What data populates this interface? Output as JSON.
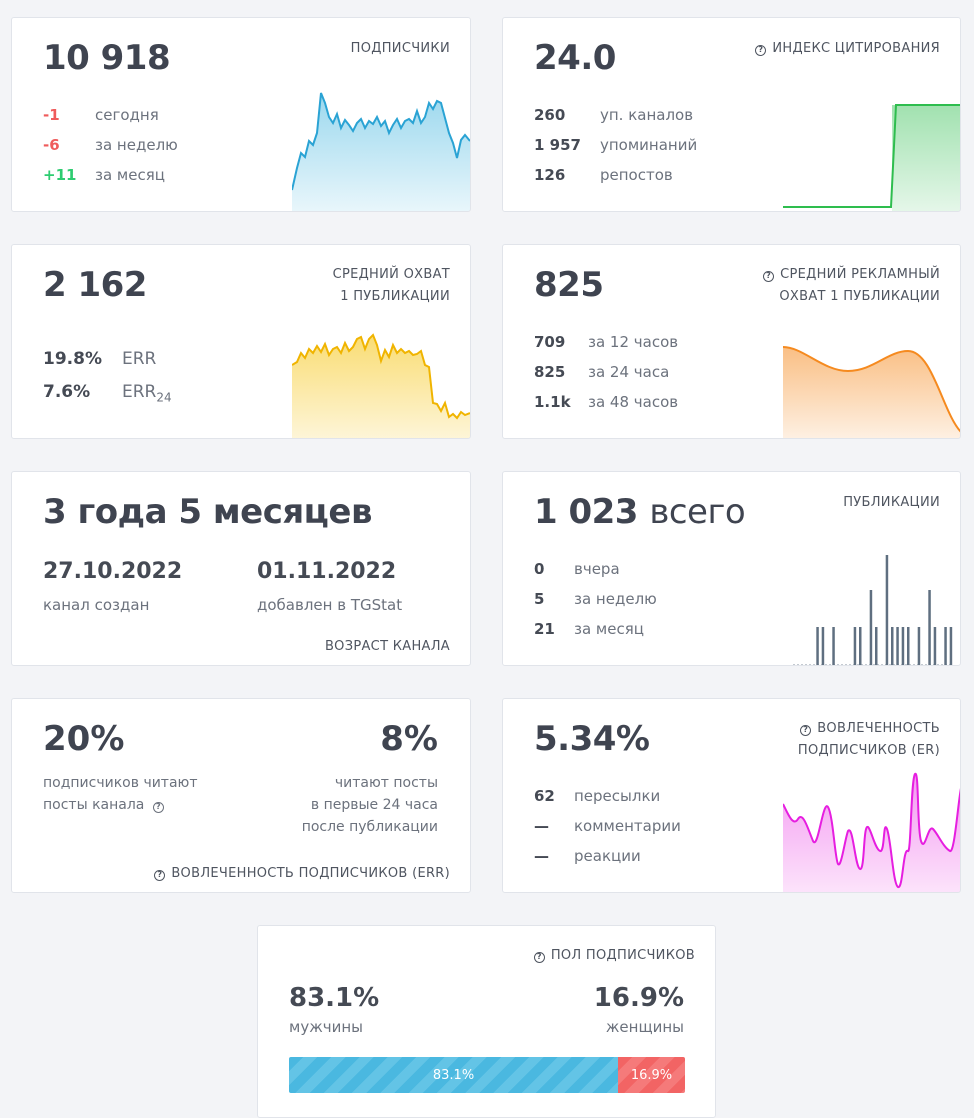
{
  "subscribers": {
    "value": "10 918",
    "caption": "ПОДПИСЧИКИ",
    "rows": [
      {
        "num": "-1",
        "label": "сегодня"
      },
      {
        "num": "-6",
        "label": "за неделю"
      },
      {
        "num": "+11",
        "label": "за месяц"
      }
    ],
    "chart_color": "#4ab8e0"
  },
  "citation": {
    "value": "24.0",
    "caption": "ИНДЕКС ЦИТИРОВАНИЯ",
    "rows": [
      {
        "num": "260",
        "label": "уп. каналов"
      },
      {
        "num": "1 957",
        "label": "упоминаний"
      },
      {
        "num": "126",
        "label": "репостов"
      }
    ],
    "chart_color": "#2ebd4e"
  },
  "reach": {
    "value": "2 162",
    "caption_line1": "СРЕДНИЙ ОХВАТ",
    "caption_line2": "1 ПУБЛИКАЦИИ",
    "rows": [
      {
        "num": "19.8%",
        "label": "ERR"
      },
      {
        "num": "7.6%",
        "label": "ERR",
        "sub": "24"
      }
    ],
    "chart_color": "#f5c000"
  },
  "ad_reach": {
    "value": "825",
    "caption_line1": "СРЕДНИЙ РЕКЛАМНЫЙ",
    "caption_line2": "ОХВАТ 1 ПУБЛИКАЦИИ",
    "rows": [
      {
        "num": "709",
        "label": "за 12 часов"
      },
      {
        "num": "825",
        "label": "за 24 часа"
      },
      {
        "num": "1.1k",
        "label": "за 48 часов"
      }
    ],
    "chart_color": "#f58a1f"
  },
  "age": {
    "value": "3 года 5 месяцев",
    "created_date": "27.10.2022",
    "created_label": "канал создан",
    "added_date": "01.11.2022",
    "added_label": "добавлен в TGStat",
    "caption": "ВОЗРАСТ КАНАЛА"
  },
  "publications": {
    "value": "1 023",
    "value_suffix": "всего",
    "caption": "ПУБЛИКАЦИИ",
    "rows": [
      {
        "num": "0",
        "label": "вчера"
      },
      {
        "num": "5",
        "label": "за неделю"
      },
      {
        "num": "21",
        "label": "за месяц"
      }
    ],
    "chart_color": "#5f6f80",
    "bars": [
      0,
      0,
      0,
      0,
      1,
      1,
      0,
      1,
      0,
      0,
      0,
      1,
      1,
      0,
      2,
      1,
      0,
      3,
      1,
      1,
      1,
      1,
      0,
      1,
      0,
      2,
      1,
      0,
      1,
      1
    ]
  },
  "err": {
    "left_pct": "20%",
    "left_desc1": "подписчиков читают",
    "left_desc2": "посты канала",
    "right_pct": "8%",
    "right_desc1": "читают посты",
    "right_desc2": "в первые 24 часа",
    "right_desc3": "после публикации",
    "caption": "ВОВЛЕЧЕННОСТЬ ПОДПИСЧИКОВ (ERR)"
  },
  "er": {
    "value": "5.34%",
    "caption_line1": "ВОВЛЕЧЕННОСТЬ",
    "caption_line2": "ПОДПИСЧИКОВ (ER)",
    "rows": [
      {
        "num": "62",
        "label": "пересылки"
      },
      {
        "num": "—",
        "label": "комментарии"
      },
      {
        "num": "—",
        "label": "реакции"
      }
    ],
    "chart_color": "#e61ee0"
  },
  "gender": {
    "caption": "ПОЛ ПОДПИСЧИКОВ",
    "male_pct": "83.1%",
    "male_label": "мужчины",
    "female_pct": "16.9%",
    "female_label": "женщины",
    "male_share": 83.1,
    "male_color": "#4ab8e0",
    "female_color": "#f26464"
  }
}
